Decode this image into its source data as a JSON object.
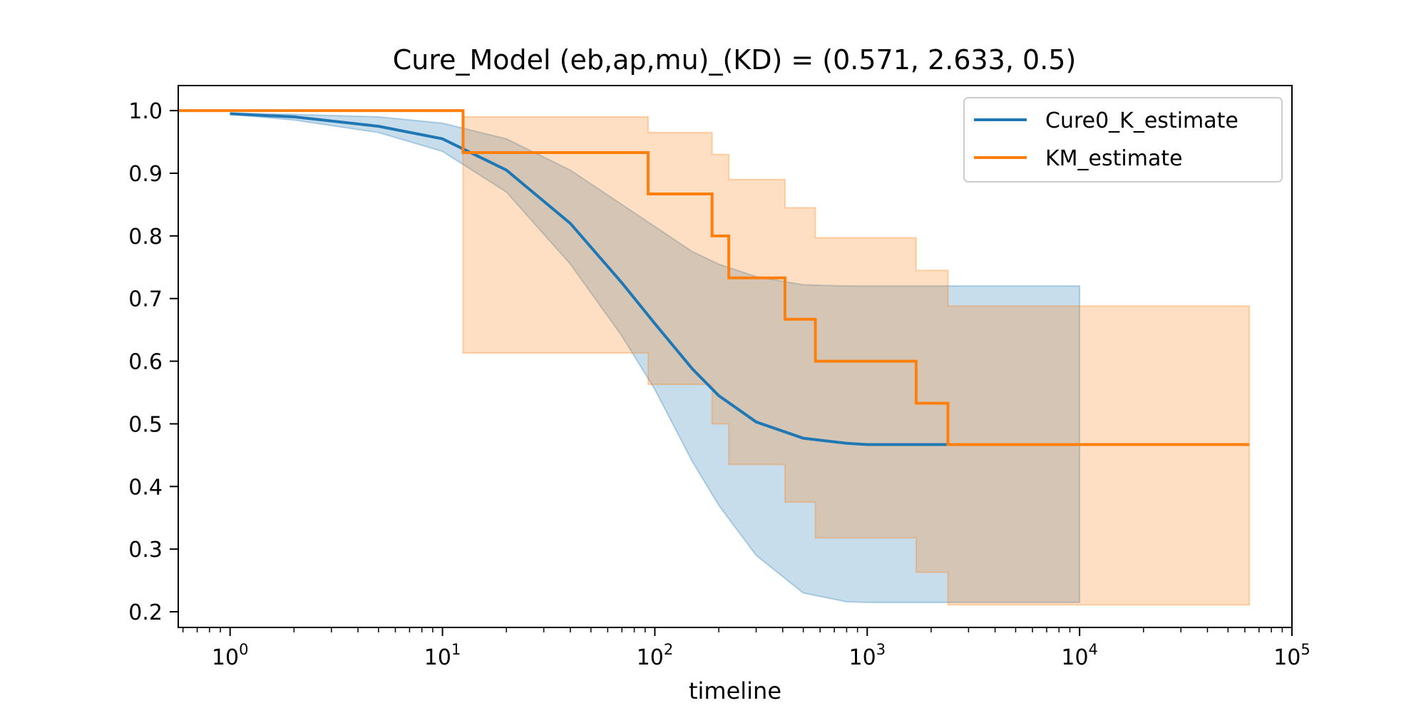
{
  "chart_data": {
    "type": "line",
    "title": "Cure_Model (eb,ap,mu)_(KD) = (0.571, 2.633, 0.5)",
    "xlabel": "timeline",
    "ylabel": "",
    "xscale": "log",
    "xlim": [
      0.57,
      100000
    ],
    "ylim": [
      0.175,
      1.04
    ],
    "grid": false,
    "legend_position": "top-right",
    "x_ticks": [
      {
        "value": 1,
        "base": "10",
        "exp": "0"
      },
      {
        "value": 10,
        "base": "10",
        "exp": "1"
      },
      {
        "value": 100,
        "base": "10",
        "exp": "2"
      },
      {
        "value": 1000,
        "base": "10",
        "exp": "3"
      },
      {
        "value": 10000,
        "base": "10",
        "exp": "4"
      },
      {
        "value": 100000,
        "base": "10",
        "exp": "5"
      }
    ],
    "y_ticks": [
      {
        "value": 0.2,
        "label": "0.2"
      },
      {
        "value": 0.3,
        "label": "0.3"
      },
      {
        "value": 0.4,
        "label": "0.4"
      },
      {
        "value": 0.5,
        "label": "0.5"
      },
      {
        "value": 0.6,
        "label": "0.6"
      },
      {
        "value": 0.7,
        "label": "0.7"
      },
      {
        "value": 0.8,
        "label": "0.8"
      },
      {
        "value": 0.9,
        "label": "0.9"
      },
      {
        "value": 1.0,
        "label": "1.0"
      }
    ],
    "series": [
      {
        "name": "Cure0_K_estimate",
        "kind": "curve",
        "color": "#1f77b4",
        "band_color": "#1f77b4",
        "x": [
          1,
          2,
          5,
          10,
          20,
          40,
          70,
          100,
          150,
          200,
          300,
          500,
          800,
          1000,
          2000,
          5000,
          10000
        ],
        "y": [
          0.995,
          0.99,
          0.975,
          0.955,
          0.905,
          0.82,
          0.725,
          0.66,
          0.588,
          0.545,
          0.503,
          0.477,
          0.469,
          0.467,
          0.467,
          0.467,
          0.467
        ],
        "lower": [
          0.994,
          0.985,
          0.965,
          0.935,
          0.87,
          0.755,
          0.64,
          0.555,
          0.44,
          0.37,
          0.29,
          0.23,
          0.216,
          0.215,
          0.215,
          0.215,
          0.215
        ],
        "upper": [
          0.996,
          0.994,
          0.99,
          0.98,
          0.955,
          0.905,
          0.85,
          0.815,
          0.775,
          0.755,
          0.735,
          0.722,
          0.72,
          0.72,
          0.72,
          0.72,
          0.72
        ]
      },
      {
        "name": "KM_estimate",
        "kind": "step",
        "color": "#ff7f0e",
        "band_color": "#ff7f0e",
        "x": [
          0,
          12.5,
          93,
          186,
          223,
          410,
          570,
          1700,
          2400,
          63000
        ],
        "y": [
          1.0,
          0.933,
          0.867,
          0.8,
          0.733,
          0.667,
          0.6,
          0.533,
          0.467,
          0.467
        ],
        "lower": [
          1.0,
          0.613,
          0.563,
          0.5,
          0.435,
          0.375,
          0.318,
          0.263,
          0.211,
          0.211
        ],
        "upper": [
          1.0,
          0.99,
          0.965,
          0.93,
          0.89,
          0.845,
          0.797,
          0.745,
          0.688,
          0.688
        ]
      }
    ]
  }
}
